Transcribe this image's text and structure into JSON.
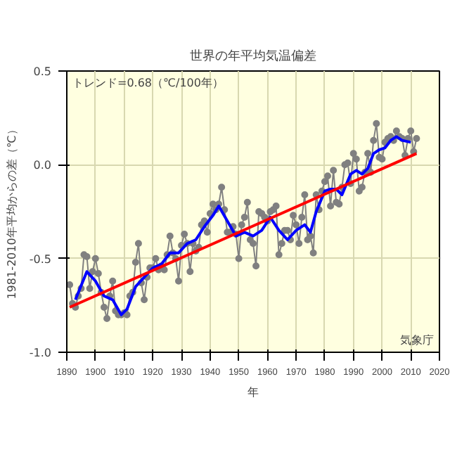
{
  "chart_data": {
    "type": "line",
    "title": "世界の年平均気温偏差",
    "xlabel": "年",
    "ylabel": "1981-2010年平均からの差（℃）",
    "annotations": [
      "トレンド=0.68（℃/100年）",
      "気象庁"
    ],
    "xlim": [
      1890,
      2020
    ],
    "xticks": [
      1890,
      1900,
      1910,
      1920,
      1930,
      1940,
      1950,
      1960,
      1970,
      1980,
      1990,
      2000,
      2010,
      2020
    ],
    "ylim": [
      -1.0,
      0.5
    ],
    "yticks": [
      {
        "value": -1.0,
        "label": "-1.0"
      },
      {
        "value": -0.5,
        "label": "-0.5"
      },
      {
        "value": 0.0,
        "label": "0.0"
      },
      {
        "value": 0.5,
        "label": "0.5"
      }
    ],
    "grid": true,
    "series": [
      {
        "color": "#808080",
        "marker": "circle",
        "line_style": "solid",
        "x": [
          1891,
          1892,
          1893,
          1894,
          1895,
          1896,
          1897,
          1898,
          1899,
          1900,
          1901,
          1902,
          1903,
          1904,
          1905,
          1906,
          1907,
          1908,
          1909,
          1910,
          1911,
          1912,
          1913,
          1914,
          1915,
          1916,
          1917,
          1918,
          1919,
          1920,
          1921,
          1922,
          1923,
          1924,
          1925,
          1926,
          1927,
          1928,
          1929,
          1930,
          1931,
          1932,
          1933,
          1934,
          1935,
          1936,
          1937,
          1938,
          1939,
          1940,
          1941,
          1942,
          1943,
          1944,
          1945,
          1946,
          1947,
          1948,
          1949,
          1950,
          1951,
          1952,
          1953,
          1954,
          1955,
          1956,
          1957,
          1958,
          1959,
          1960,
          1961,
          1962,
          1963,
          1964,
          1965,
          1966,
          1967,
          1968,
          1969,
          1970,
          1971,
          1972,
          1973,
          1974,
          1975,
          1976,
          1977,
          1978,
          1979,
          1980,
          1981,
          1982,
          1983,
          1984,
          1985,
          1986,
          1987,
          1988,
          1989,
          1990,
          1991,
          1992,
          1993,
          1994,
          1995,
          1996,
          1997,
          1998,
          1999,
          2000,
          2001,
          2002,
          2003,
          2004,
          2005,
          2006,
          2007,
          2008,
          2009,
          2010,
          2011,
          2012
        ],
        "values": [
          -0.64,
          -0.74,
          -0.76,
          -0.7,
          -0.66,
          -0.48,
          -0.49,
          -0.66,
          -0.57,
          -0.5,
          -0.58,
          -0.68,
          -0.76,
          -0.82,
          -0.7,
          -0.62,
          -0.78,
          -0.8,
          -0.8,
          -0.79,
          -0.8,
          -0.7,
          -0.68,
          -0.52,
          -0.42,
          -0.63,
          -0.72,
          -0.6,
          -0.55,
          -0.55,
          -0.5,
          -0.56,
          -0.54,
          -0.56,
          -0.48,
          -0.38,
          -0.47,
          -0.5,
          -0.62,
          -0.43,
          -0.37,
          -0.42,
          -0.57,
          -0.42,
          -0.46,
          -0.44,
          -0.32,
          -0.3,
          -0.36,
          -0.26,
          -0.21,
          -0.24,
          -0.21,
          -0.12,
          -0.24,
          -0.36,
          -0.36,
          -0.33,
          -0.37,
          -0.5,
          -0.32,
          -0.28,
          -0.2,
          -0.4,
          -0.42,
          -0.54,
          -0.25,
          -0.26,
          -0.28,
          -0.3,
          -0.25,
          -0.24,
          -0.22,
          -0.48,
          -0.42,
          -0.35,
          -0.35,
          -0.4,
          -0.27,
          -0.32,
          -0.42,
          -0.28,
          -0.16,
          -0.4,
          -0.38,
          -0.47,
          -0.16,
          -0.24,
          -0.14,
          -0.09,
          -0.06,
          -0.22,
          -0.03,
          -0.2,
          -0.21,
          -0.12,
          0.0,
          0.01,
          -0.1,
          0.06,
          0.03,
          -0.14,
          -0.12,
          -0.04,
          0.06,
          -0.04,
          0.13,
          0.22,
          0.04,
          0.03,
          0.12,
          0.14,
          0.15,
          0.13,
          0.18,
          0.15,
          0.14,
          0.05,
          0.14,
          0.18,
          0.07,
          0.14
        ]
      },
      {
        "color": "#0000ff",
        "marker": "none",
        "line_style": "solid",
        "x": [
          1893,
          1897,
          1900,
          1903,
          1906,
          1909,
          1911,
          1914,
          1917,
          1920,
          1923,
          1926,
          1929,
          1932,
          1935,
          1938,
          1941,
          1943,
          1946,
          1949,
          1952,
          1955,
          1958,
          1961,
          1964,
          1967,
          1970,
          1973,
          1975,
          1977,
          1980,
          1982,
          1984,
          1986,
          1989,
          1991,
          1993,
          1995,
          1997,
          1999,
          2001,
          2003,
          2005,
          2007,
          2010
        ],
        "values": [
          -0.72,
          -0.57,
          -0.62,
          -0.7,
          -0.72,
          -0.8,
          -0.77,
          -0.65,
          -0.6,
          -0.55,
          -0.53,
          -0.47,
          -0.47,
          -0.42,
          -0.4,
          -0.33,
          -0.27,
          -0.22,
          -0.3,
          -0.38,
          -0.36,
          -0.38,
          -0.35,
          -0.28,
          -0.35,
          -0.4,
          -0.35,
          -0.32,
          -0.36,
          -0.25,
          -0.14,
          -0.13,
          -0.13,
          -0.16,
          -0.05,
          -0.03,
          -0.05,
          -0.02,
          0.06,
          0.08,
          0.09,
          0.13,
          0.15,
          0.13,
          0.12
        ]
      },
      {
        "color": "#ff0000",
        "marker": "none",
        "line_style": "solid",
        "x": [
          1891,
          2012
        ],
        "values": [
          -0.76,
          0.06
        ]
      }
    ]
  }
}
